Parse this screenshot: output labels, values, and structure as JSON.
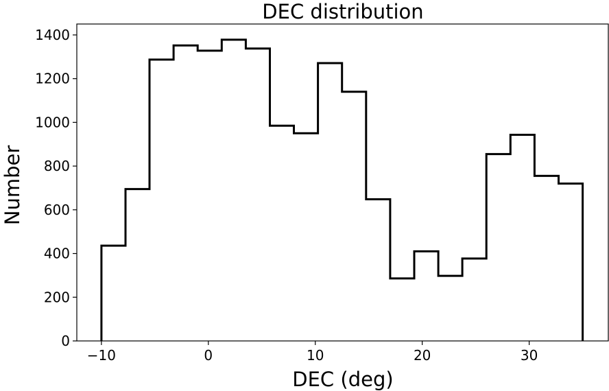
{
  "chart_data": {
    "type": "histogram",
    "title": "DEC distribution",
    "xlabel": "DEC (deg)",
    "ylabel": "Number",
    "xlim": [
      -12.3,
      37.4
    ],
    "ylim": [
      0,
      1450
    ],
    "grid": false,
    "histtype": "step",
    "line_color": "#000000",
    "bin_edges": [
      -10.0,
      -7.75,
      -5.5,
      -3.25,
      -1.0,
      1.25,
      3.5,
      5.75,
      8.0,
      10.25,
      12.5,
      14.75,
      17.0,
      19.25,
      21.5,
      23.75,
      26.0,
      28.25,
      30.5,
      32.75,
      35.0
    ],
    "counts": [
      436,
      695,
      1287,
      1352,
      1328,
      1378,
      1338,
      985,
      950,
      1271,
      1140,
      648,
      286,
      410,
      298,
      377,
      855,
      943,
      755,
      720
    ],
    "x_ticks": [
      {
        "value": -10,
        "label": "−10"
      },
      {
        "value": 0,
        "label": "0"
      },
      {
        "value": 10,
        "label": "10"
      },
      {
        "value": 20,
        "label": "20"
      },
      {
        "value": 30,
        "label": "30"
      }
    ],
    "y_ticks": [
      {
        "value": 0,
        "label": "0"
      },
      {
        "value": 200,
        "label": "200"
      },
      {
        "value": 400,
        "label": "400"
      },
      {
        "value": 600,
        "label": "600"
      },
      {
        "value": 800,
        "label": "800"
      },
      {
        "value": 1000,
        "label": "1000"
      },
      {
        "value": 1200,
        "label": "1200"
      },
      {
        "value": 1400,
        "label": "1400"
      }
    ]
  }
}
